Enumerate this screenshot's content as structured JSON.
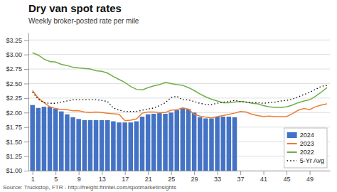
{
  "chart_data": {
    "type": "bar",
    "title": "Dry van spot rates",
    "subtitle": "Weekly broker-posted rate per mile",
    "annotations": [
      "Source: Truckstop, FTR - http://freight.ftrintel.com/spotmarketinsights"
    ],
    "x": [
      1,
      2,
      3,
      4,
      5,
      6,
      7,
      8,
      9,
      10,
      11,
      12,
      13,
      14,
      15,
      16,
      17,
      18,
      19,
      20,
      21,
      22,
      23,
      24,
      25,
      26,
      27,
      28,
      29,
      30,
      31,
      32,
      33,
      34,
      35,
      36,
      37,
      38,
      39,
      40,
      41,
      42,
      43,
      44,
      45,
      46,
      47,
      48,
      49,
      50,
      51,
      52
    ],
    "xlim": [
      0.3,
      52.5
    ],
    "xticks": [
      1,
      5,
      9,
      13,
      17,
      21,
      25,
      29,
      33,
      37,
      41,
      45,
      49
    ],
    "ylim": [
      1.0,
      3.375
    ],
    "yticks": [
      {
        "value": 1.0,
        "label": "$1.00"
      },
      {
        "value": 1.25,
        "label": "$1.25"
      },
      {
        "value": 1.5,
        "label": "$1.50"
      },
      {
        "value": 1.75,
        "label": "$1.75"
      },
      {
        "value": 2.0,
        "label": "$2.00"
      },
      {
        "value": 2.25,
        "label": "$2.25"
      },
      {
        "value": 2.5,
        "label": "$2.50"
      },
      {
        "value": 2.75,
        "label": "$2.75"
      },
      {
        "value": 3.0,
        "label": "$3.00"
      },
      {
        "value": 3.25,
        "label": "$3.25"
      }
    ],
    "grid": true,
    "legend": "lower right",
    "series": [
      {
        "name": "2024",
        "type": "bar",
        "color": "#4472C4",
        "values": [
          2.13,
          2.08,
          2.1,
          2.1,
          2.07,
          2.02,
          1.97,
          1.92,
          1.89,
          1.87,
          1.87,
          1.87,
          1.87,
          1.87,
          1.85,
          1.83,
          1.83,
          1.83,
          1.85,
          1.93,
          1.97,
          1.98,
          1.99,
          1.98,
          2.0,
          2.04,
          2.08,
          2.06,
          2.0,
          1.92,
          1.9,
          1.9,
          1.93,
          1.93,
          1.93,
          1.92,
          null,
          null,
          null,
          null,
          null,
          null,
          null,
          null,
          null,
          null,
          null,
          null,
          null,
          null,
          null,
          null
        ]
      },
      {
        "name": "2023",
        "type": "line",
        "color": "#ED7D31",
        "line_style": "solid",
        "values": [
          2.38,
          2.25,
          2.17,
          2.1,
          2.07,
          2.05,
          2.05,
          2.03,
          2.03,
          2.01,
          2.0,
          2.01,
          2.0,
          1.99,
          1.98,
          1.97,
          1.86,
          1.87,
          1.89,
          1.99,
          2.01,
          2.01,
          2.0,
          2.0,
          2.04,
          2.05,
          2.08,
          2.06,
          1.97,
          1.94,
          1.92,
          1.91,
          1.93,
          1.95,
          1.97,
          1.99,
          2.02,
          2.01,
          1.97,
          1.95,
          1.93,
          1.94,
          1.93,
          1.93,
          1.93,
          1.98,
          2.04,
          2.07,
          2.05,
          2.1,
          2.13,
          2.15
        ]
      },
      {
        "name": "2022",
        "type": "line",
        "color": "#70AD47",
        "line_style": "solid",
        "values": [
          3.03,
          2.99,
          2.92,
          2.88,
          2.87,
          2.83,
          2.81,
          2.78,
          2.77,
          2.76,
          2.75,
          2.72,
          2.71,
          2.68,
          2.62,
          2.57,
          2.52,
          2.45,
          2.4,
          2.39,
          2.43,
          2.46,
          2.48,
          2.52,
          2.5,
          2.48,
          2.47,
          2.43,
          2.38,
          2.32,
          2.27,
          2.23,
          2.2,
          2.17,
          2.17,
          2.18,
          2.19,
          2.18,
          2.16,
          2.15,
          2.12,
          2.1,
          2.09,
          2.09,
          2.1,
          2.13,
          2.17,
          2.2,
          2.22,
          2.28,
          2.35,
          2.43
        ]
      },
      {
        "name": "5-Yr Avg",
        "type": "line",
        "color": "#000000",
        "line_style": "dotted",
        "values": [
          2.35,
          2.23,
          2.17,
          2.16,
          2.16,
          2.18,
          2.2,
          2.22,
          2.22,
          2.22,
          2.22,
          2.22,
          2.21,
          2.19,
          2.08,
          2.04,
          2.02,
          2.02,
          2.02,
          2.04,
          2.06,
          2.08,
          2.12,
          2.17,
          2.26,
          2.28,
          2.22,
          2.22,
          2.19,
          2.16,
          2.14,
          2.14,
          2.16,
          2.18,
          2.19,
          2.21,
          2.19,
          2.18,
          2.17,
          2.17,
          2.16,
          2.17,
          2.18,
          2.2,
          2.21,
          2.23,
          2.27,
          2.31,
          2.35,
          2.4,
          2.45,
          2.47
        ]
      }
    ]
  }
}
